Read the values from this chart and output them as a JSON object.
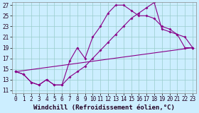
{
  "xlabel": "Windchill (Refroidissement éolien,°C)",
  "background_color": "#cceeff",
  "line_color": "#880088",
  "xlim_min": -0.5,
  "xlim_max": 23.5,
  "ylim_min": 10.5,
  "ylim_max": 27.5,
  "yticks": [
    11,
    13,
    15,
    17,
    19,
    21,
    23,
    25,
    27
  ],
  "xticks": [
    0,
    1,
    2,
    3,
    4,
    5,
    6,
    7,
    8,
    9,
    10,
    11,
    12,
    13,
    14,
    15,
    16,
    17,
    18,
    19,
    20,
    21,
    22,
    23
  ],
  "curve1_x": [
    0,
    1,
    2,
    3,
    4,
    5,
    6,
    7,
    8,
    9,
    10,
    11,
    12,
    13,
    14,
    15,
    16,
    17,
    18,
    19,
    20,
    21,
    22,
    23
  ],
  "curve1_y": [
    14.5,
    14.0,
    12.5,
    12.0,
    13.0,
    12.0,
    12.0,
    16.5,
    19.0,
    17.0,
    21.0,
    23.0,
    25.5,
    27.0,
    27.0,
    26.0,
    25.0,
    25.0,
    24.5,
    23.0,
    22.5,
    21.5,
    21.0,
    19.0
  ],
  "curve2_x": [
    0,
    1,
    2,
    3,
    4,
    5,
    6,
    7,
    8,
    9,
    10,
    11,
    12,
    13,
    14,
    15,
    16,
    17,
    18,
    19,
    20,
    21,
    22,
    23
  ],
  "curve2_y": [
    14.5,
    14.0,
    12.5,
    12.0,
    13.0,
    12.0,
    12.0,
    13.5,
    14.5,
    15.5,
    17.0,
    18.5,
    20.0,
    21.5,
    23.0,
    24.5,
    25.5,
    26.5,
    27.5,
    22.5,
    22.0,
    21.5,
    19.0,
    19.0
  ],
  "curve3_x": [
    0,
    23
  ],
  "curve3_y": [
    14.5,
    19.0
  ],
  "grid_color": "#99cccc",
  "tick_fontsize": 5.5,
  "xlabel_fontsize": 6.5,
  "marker_size": 2,
  "linewidth": 0.8
}
